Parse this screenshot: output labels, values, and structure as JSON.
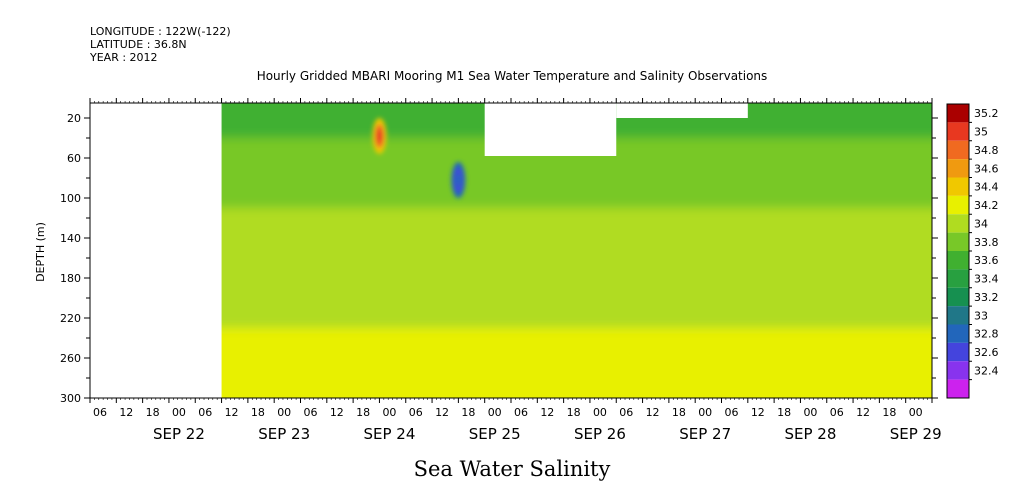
{
  "chart_data": {
    "type": "heatmap",
    "title": "Hourly Gridded MBARI Mooring M1 Sea Water Temperature and Salinity Observations",
    "header_lines": [
      "LONGITUDE : 122W(-122)",
      "LATITUDE : 36.8N",
      "YEAR : 2012"
    ],
    "xlabel": "Sea Water Salinity",
    "ylabel": "DEPTH (m)",
    "x_start": "SEP 21 06:00",
    "x_end": "SEP 29 06:00",
    "x_hour_ticks": [
      "06",
      "12",
      "18",
      "00",
      "06",
      "12",
      "18",
      "00",
      "06",
      "12",
      "18",
      "00",
      "06",
      "12",
      "18",
      "00",
      "06",
      "12",
      "18",
      "00",
      "06",
      "12",
      "18",
      "00",
      "06",
      "12",
      "18",
      "00",
      "06",
      "12",
      "18",
      "00"
    ],
    "x_day_labels": [
      "SEP 22",
      "SEP 23",
      "SEP 24",
      "SEP 25",
      "SEP 26",
      "SEP 27",
      "SEP 28",
      "SEP 29"
    ],
    "y_ticks": [
      20,
      60,
      100,
      140,
      180,
      220,
      260,
      300
    ],
    "ylim": [
      300,
      5
    ],
    "colorbar": {
      "levels": [
        32.4,
        32.6,
        32.8,
        33,
        33.2,
        33.4,
        33.6,
        33.8,
        34,
        34.2,
        34.4,
        34.6,
        34.8,
        35,
        35.2
      ],
      "labels": [
        "35.2",
        "35",
        "34.8",
        "34.6",
        "34.4",
        "34.2",
        "34",
        "33.8",
        "33.6",
        "33.4",
        "33.2",
        "33",
        "32.8",
        "32.6",
        "32.4"
      ],
      "colors": [
        "#cc22ee",
        "#8833ee",
        "#4444dd",
        "#2266bb",
        "#207788",
        "#169050",
        "#28a040",
        "#40b030",
        "#78c828",
        "#b0dc20",
        "#e8f000",
        "#f0c800",
        "#f09a10",
        "#f06a20",
        "#e83820",
        "#aa0000"
      ]
    },
    "series": [
      {
        "depth_range": [
          5,
          40
        ],
        "value": 33.6
      },
      {
        "depth_range": [
          40,
          110
        ],
        "value": 33.8
      },
      {
        "depth_range": [
          110,
          150
        ],
        "value": 34.0
      },
      {
        "depth_range": [
          150,
          230
        ],
        "value": 34.1
      },
      {
        "depth_range": [
          230,
          300
        ],
        "value": 34.3
      }
    ],
    "anomalies": [
      {
        "time": "SEP 24 00:00",
        "depth": 38,
        "value": 35.1
      },
      {
        "time": "SEP 24 18:00",
        "depth": 82,
        "value": 32.9
      }
    ],
    "missing_regions": [
      {
        "from": "SEP 21 06:00",
        "to": "SEP 22 12:00",
        "depth_range": [
          5,
          300
        ]
      },
      {
        "from": "SEP 25 00:00",
        "to": "SEP 26 06:00",
        "depth_range": [
          5,
          58
        ]
      },
      {
        "from": "SEP 26 06:00",
        "to": "SEP 27 12:00",
        "depth_range": [
          5,
          20
        ]
      }
    ]
  }
}
